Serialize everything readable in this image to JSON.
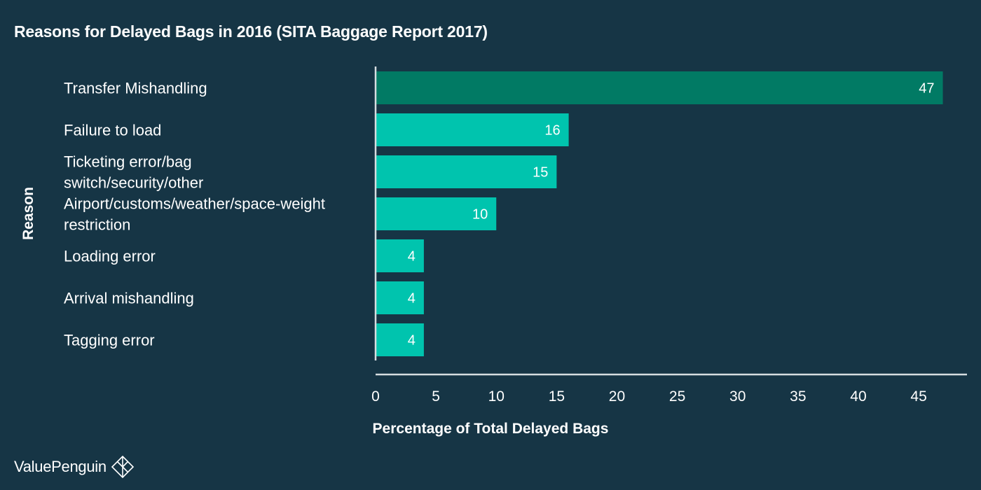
{
  "chart_data": {
    "type": "bar",
    "orientation": "horizontal",
    "title": "Reasons for Delayed Bags in 2016 (SITA Baggage Report 2017)",
    "xlabel": "Percentage of Total Delayed Bags",
    "ylabel": "Reason",
    "categories": [
      [
        "Transfer Mishandling"
      ],
      [
        "Failure to load"
      ],
      [
        "Ticketing error/bag",
        "switch/security/other"
      ],
      [
        "Airport/customs/weather/space-weight",
        "restriction"
      ],
      [
        "Loading error"
      ],
      [
        "Arrival mishandling"
      ],
      [
        "Tagging error"
      ]
    ],
    "values": [
      47,
      16,
      15,
      10,
      4,
      4,
      4
    ],
    "data_labels": [
      "47",
      "16",
      "15",
      "10",
      "4",
      "4",
      "4"
    ],
    "xlim": [
      0,
      49
    ],
    "x_ticks": [
      0,
      5,
      10,
      15,
      20,
      25,
      30,
      35,
      40,
      45
    ],
    "x_tick_labels": [
      "0",
      "5",
      "10",
      "15",
      "20",
      "25",
      "30",
      "35",
      "40",
      "45"
    ],
    "grid": false,
    "highlight_index": 0
  },
  "colors": {
    "background": "#163545",
    "bar": "#00c4ae",
    "bar_highlight": "#017a64",
    "axis": "#d6dde0",
    "text": "#ffffff"
  },
  "brand": {
    "name": "ValuePenguin",
    "icon": "valuepenguin-diamond-icon"
  }
}
